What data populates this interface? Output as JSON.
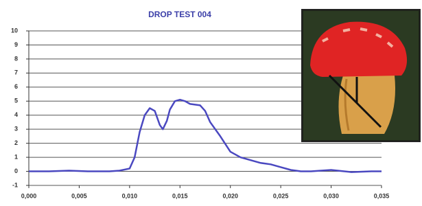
{
  "chart_data": {
    "type": "line",
    "title": "DROP TEST 004",
    "x": [
      0,
      0.002,
      0.004,
      0.006,
      0.008,
      0.009,
      0.01,
      0.0105,
      0.011,
      0.0115,
      0.012,
      0.0125,
      0.013,
      0.0133,
      0.0137,
      0.014,
      0.0145,
      0.015,
      0.0155,
      0.016,
      0.017,
      0.0175,
      0.018,
      0.019,
      0.02,
      0.021,
      0.022,
      0.023,
      0.024,
      0.025,
      0.026,
      0.027,
      0.028,
      0.03,
      0.032,
      0.034,
      0.035
    ],
    "values": [
      0,
      0,
      0.05,
      0,
      0,
      0.05,
      0.2,
      1,
      2.8,
      4,
      4.5,
      4.3,
      3.3,
      3.0,
      3.6,
      4.4,
      5.0,
      5.1,
      5.0,
      4.8,
      4.7,
      4.3,
      3.5,
      2.5,
      1.4,
      1.0,
      0.8,
      0.6,
      0.5,
      0.3,
      0.1,
      0,
      0,
      0.1,
      -0.05,
      0,
      0
    ],
    "color": "#4a48c0",
    "xlim": [
      0,
      0.035
    ],
    "xticks": [
      {
        "value": 0,
        "label": "0,000"
      },
      {
        "value": 0.005,
        "label": "0,005"
      },
      {
        "value": 0.01,
        "label": "0,010"
      },
      {
        "value": 0.015,
        "label": "0,015"
      },
      {
        "value": 0.02,
        "label": "0,020"
      },
      {
        "value": 0.025,
        "label": "0,025"
      },
      {
        "value": 0.03,
        "label": "0,030"
      },
      {
        "value": 0.035,
        "label": "0,035"
      }
    ],
    "ylim": [
      -1,
      10
    ],
    "yticks": [
      -1,
      0,
      1,
      2,
      3,
      4,
      5,
      6,
      7,
      8,
      9,
      10
    ],
    "grid": true
  }
}
